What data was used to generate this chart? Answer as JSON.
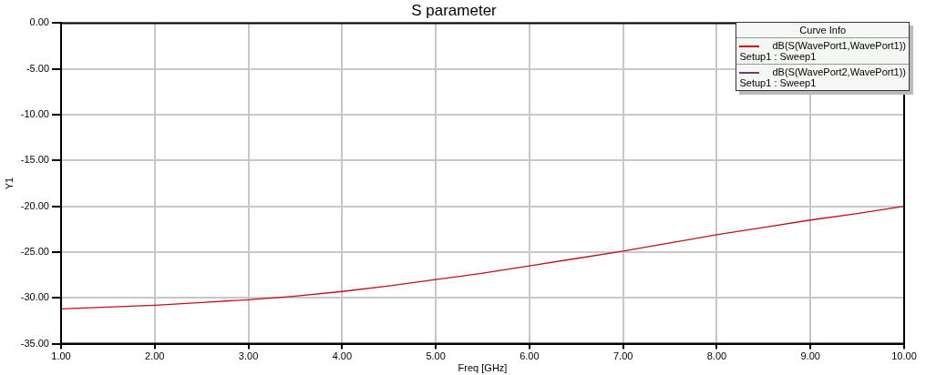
{
  "chart_data": {
    "type": "line",
    "title": "S parameter",
    "xlabel": "Freq [GHz]",
    "ylabel": "Y1",
    "legend_title": "Curve Info",
    "x": [
      1,
      1.5,
      2,
      2.5,
      3,
      3.5,
      4,
      4.5,
      5,
      5.5,
      6,
      6.5,
      7,
      7.5,
      8,
      8.5,
      9,
      9.5,
      10
    ],
    "series": [
      {
        "name": "dB(S(WavePort1,WavePort1))\nSetup1 : Sweep1",
        "color": "#c0101c",
        "values": [
          -31.2,
          -31.0,
          -30.8,
          -30.5,
          -30.2,
          -29.8,
          -29.3,
          -28.7,
          -28.0,
          -27.3,
          -26.5,
          -25.7,
          -24.9,
          -24.0,
          -23.1,
          -22.3,
          -21.5,
          -20.8,
          -20.0
        ]
      },
      {
        "name": "dB(S(WavePort2,WavePort1))\nSetup1 : Sweep1",
        "color": "#7a3a66",
        "values": [
          null,
          null,
          null,
          null,
          null,
          null,
          null,
          null,
          null,
          null,
          null,
          null,
          null,
          null,
          null,
          null,
          null,
          null,
          null
        ]
      }
    ],
    "xlim": [
      1,
      10
    ],
    "xticks": [
      {
        "value": 1,
        "label": "1.00"
      },
      {
        "value": 2,
        "label": "2.00"
      },
      {
        "value": 3,
        "label": "3.00"
      },
      {
        "value": 4,
        "label": "4.00"
      },
      {
        "value": 5,
        "label": "5.00"
      },
      {
        "value": 6,
        "label": "6.00"
      },
      {
        "value": 7,
        "label": "7.00"
      },
      {
        "value": 8,
        "label": "8.00"
      },
      {
        "value": 9,
        "label": "9.00"
      },
      {
        "value": 10,
        "label": "10.00"
      }
    ],
    "ylim": [
      -35,
      0
    ],
    "yticks": [
      {
        "value": -35,
        "label": "-35.00"
      },
      {
        "value": -30,
        "label": "-30.00"
      },
      {
        "value": -25,
        "label": "-25.00"
      },
      {
        "value": -20,
        "label": "-20.00"
      },
      {
        "value": -15,
        "label": "-15.00"
      },
      {
        "value": -10,
        "label": "-10.00"
      },
      {
        "value": -5,
        "label": "-5.00"
      },
      {
        "value": 0,
        "label": "0.00"
      }
    ],
    "grid": true,
    "legend": "top right",
    "marker": "none",
    "line_style": "solid"
  }
}
